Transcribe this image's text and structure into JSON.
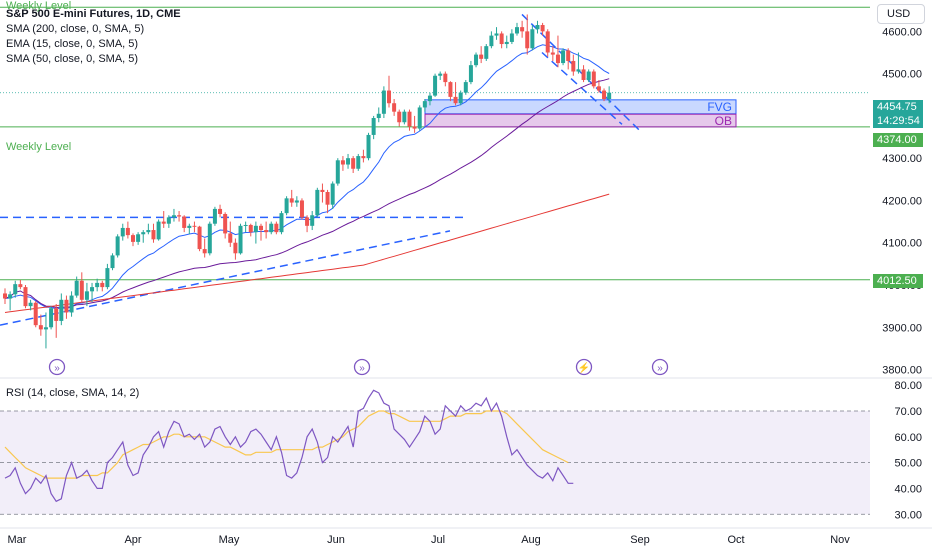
{
  "toolbar": {
    "currency": "USD"
  },
  "legend": {
    "title": "S&P 500 E-mini Futures, 1D, CME",
    "lines": [
      "SMA (200, close, 0, SMA, 5)",
      "EMA (15, close, 0, SMA, 5)",
      "SMA (50, close, 0, SMA, 5)"
    ]
  },
  "rsi_legend": "RSI (14, close, SMA, 14, 2)",
  "annotations": {
    "weekly_level_top": "Weekly Level",
    "weekly_level": "Weekly Level",
    "fvg": "FVG",
    "ob": "OB"
  },
  "price_tags": {
    "last_price": "4454.75",
    "countdown": "14:29:54",
    "level_mid": "4374.00",
    "level_low": "4012.50"
  },
  "colors": {
    "up": "#26a69a",
    "down": "#ef5350",
    "sma200": "#e53935",
    "ema15": "#2962ff",
    "sma50": "#6a1b9a",
    "rsi": "#7e57c2",
    "rsi_ma": "#f9c74f",
    "level": "#4caf50",
    "fvg": "#2962ff",
    "ob": "#9c27b0"
  },
  "chart_data": [
    {
      "type": "candlestick",
      "title": "S&P 500 E-mini Futures, 1D, CME",
      "ylim": [
        3780,
        4660
      ],
      "y_ticks": [
        "4600.00",
        "4500.00",
        "4400.00",
        "4300.00",
        "4200.00",
        "4100.00",
        "4000.00",
        "3900.00",
        "3800.00"
      ],
      "x_ticks": [
        "Mar",
        "Apr",
        "May",
        "Jun",
        "Jul",
        "Aug",
        "Sep",
        "Oct",
        "Nov"
      ],
      "ohlc": [
        [
          "Mar-01",
          3980,
          3992,
          3955,
          3968
        ],
        [
          "Mar-02",
          3968,
          3985,
          3940,
          3978
        ],
        [
          "Mar-03",
          3978,
          4010,
          3970,
          4002
        ],
        [
          "Mar-06",
          4002,
          4012,
          3990,
          3995
        ],
        [
          "Mar-07",
          3995,
          4000,
          3945,
          3950
        ],
        [
          "Mar-08",
          3950,
          3965,
          3940,
          3958
        ],
        [
          "Mar-09",
          3958,
          3962,
          3900,
          3905
        ],
        [
          "Mar-10",
          3905,
          3930,
          3880,
          3895
        ],
        [
          "Mar-13",
          3895,
          3935,
          3850,
          3900
        ],
        [
          "Mar-14",
          3900,
          3950,
          3895,
          3945
        ],
        [
          "Mar-15",
          3945,
          3955,
          3875,
          3915
        ],
        [
          "Mar-16",
          3915,
          3980,
          3905,
          3965
        ],
        [
          "Mar-17",
          3965,
          3975,
          3920,
          3935
        ],
        [
          "Mar-20",
          3935,
          3985,
          3925,
          3975
        ],
        [
          "Mar-21",
          3975,
          4020,
          3970,
          4010
        ],
        [
          "Mar-22",
          4010,
          4030,
          3960,
          3965
        ],
        [
          "Mar-23",
          3965,
          4005,
          3950,
          3985
        ],
        [
          "Mar-24",
          3985,
          4005,
          3960,
          3995
        ],
        [
          "Mar-27",
          3995,
          4015,
          3985,
          4005
        ],
        [
          "Mar-28",
          4005,
          4010,
          3985,
          3995
        ],
        [
          "Mar-29",
          3995,
          4050,
          3990,
          4040
        ],
        [
          "Mar-30",
          4040,
          4075,
          4035,
          4070
        ],
        [
          "Mar-31",
          4070,
          4120,
          4065,
          4115
        ],
        [
          "Apr-03",
          4115,
          4145,
          4105,
          4135
        ],
        [
          "Apr-04",
          4135,
          4150,
          4110,
          4118
        ],
        [
          "Apr-05",
          4118,
          4122,
          4092,
          4102
        ],
        [
          "Apr-06",
          4102,
          4125,
          4095,
          4120
        ],
        [
          "Apr-10",
          4120,
          4130,
          4100,
          4125
        ],
        [
          "Apr-11",
          4125,
          4145,
          4120,
          4130
        ],
        [
          "Apr-12",
          4130,
          4145,
          4100,
          4108
        ],
        [
          "Apr-13",
          4108,
          4155,
          4105,
          4150
        ],
        [
          "Apr-14",
          4150,
          4175,
          4135,
          4145
        ],
        [
          "Apr-17",
          4145,
          4165,
          4135,
          4160
        ],
        [
          "Apr-18",
          4160,
          4180,
          4150,
          4165
        ],
        [
          "Apr-19",
          4165,
          4175,
          4150,
          4162
        ],
        [
          "Apr-20",
          4162,
          4165,
          4125,
          4135
        ],
        [
          "Apr-21",
          4135,
          4145,
          4120,
          4140
        ],
        [
          "Apr-24",
          4140,
          4150,
          4125,
          4138
        ],
        [
          "Apr-25",
          4138,
          4140,
          4080,
          4085
        ],
        [
          "Apr-26",
          4085,
          4110,
          4065,
          4075
        ],
        [
          "Apr-27",
          4075,
          4150,
          4070,
          4145
        ],
        [
          "Apr-28",
          4145,
          4185,
          4140,
          4180
        ],
        [
          "May-01",
          4180,
          4190,
          4160,
          4168
        ],
        [
          "May-02",
          4168,
          4172,
          4110,
          4122
        ],
        [
          "May-03",
          4122,
          4150,
          4090,
          4100
        ],
        [
          "May-04",
          4100,
          4110,
          4060,
          4075
        ],
        [
          "May-05",
          4075,
          4145,
          4072,
          4140
        ],
        [
          "May-08",
          4140,
          4150,
          4125,
          4142
        ],
        [
          "May-09",
          4142,
          4145,
          4115,
          4125
        ],
        [
          "May-10",
          4125,
          4150,
          4098,
          4140
        ],
        [
          "May-11",
          4140,
          4145,
          4105,
          4130
        ],
        [
          "May-12",
          4130,
          4150,
          4110,
          4125
        ],
        [
          "May-15",
          4125,
          4150,
          4120,
          4145
        ],
        [
          "May-16",
          4145,
          4150,
          4120,
          4125
        ],
        [
          "May-17",
          4125,
          4175,
          4120,
          4170
        ],
        [
          "May-18",
          4170,
          4210,
          4165,
          4205
        ],
        [
          "May-19",
          4205,
          4225,
          4185,
          4195
        ],
        [
          "May-22",
          4195,
          4210,
          4185,
          4200
        ],
        [
          "May-23",
          4200,
          4205,
          4155,
          4160
        ],
        [
          "May-24",
          4160,
          4165,
          4125,
          4140
        ],
        [
          "May-25",
          4140,
          4175,
          4130,
          4165
        ],
        [
          "May-26",
          4165,
          4230,
          4160,
          4225
        ],
        [
          "May-30",
          4225,
          4240,
          4195,
          4220
        ],
        [
          "May-31",
          4220,
          4225,
          4170,
          4190
        ],
        [
          "Jun-01",
          4190,
          4245,
          4180,
          4240
        ],
        [
          "Jun-02",
          4240,
          4300,
          4235,
          4295
        ],
        [
          "Jun-05",
          4295,
          4305,
          4270,
          4285
        ],
        [
          "Jun-06",
          4285,
          4310,
          4275,
          4300
        ],
        [
          "Jun-07",
          4300,
          4305,
          4265,
          4275
        ],
        [
          "Jun-08",
          4275,
          4310,
          4270,
          4305
        ],
        [
          "Jun-09",
          4305,
          4320,
          4290,
          4300
        ],
        [
          "Jun-12",
          4300,
          4360,
          4295,
          4355
        ],
        [
          "Jun-13",
          4355,
          4400,
          4345,
          4395
        ],
        [
          "Jun-14",
          4395,
          4420,
          4385,
          4405
        ],
        [
          "Jun-15",
          4405,
          4470,
          4395,
          4460
        ],
        [
          "Jun-16",
          4460,
          4495,
          4420,
          4430
        ],
        [
          "Jun-20",
          4430,
          4440,
          4400,
          4410
        ],
        [
          "Jun-21",
          4410,
          4415,
          4375,
          4385
        ],
        [
          "Jun-22",
          4385,
          4415,
          4380,
          4410
        ],
        [
          "Jun-23",
          4410,
          4415,
          4365,
          4375
        ],
        [
          "Jun-26",
          4375,
          4400,
          4360,
          4370
        ],
        [
          "Jun-27",
          4370,
          4425,
          4365,
          4420
        ],
        [
          "Jun-28",
          4420,
          4440,
          4410,
          4435
        ],
        [
          "Jun-29",
          4435,
          4455,
          4425,
          4448
        ],
        [
          "Jun-30",
          4448,
          4500,
          4445,
          4495
        ],
        [
          "Jul-03",
          4495,
          4505,
          4485,
          4500
        ],
        [
          "Jul-05",
          4500,
          4505,
          4470,
          4480
        ],
        [
          "Jul-06",
          4480,
          4482,
          4435,
          4445
        ],
        [
          "Jul-07",
          4445,
          4480,
          4425,
          4430
        ],
        [
          "Jul-10",
          4430,
          4460,
          4425,
          4455
        ],
        [
          "Jul-11",
          4455,
          4485,
          4450,
          4480
        ],
        [
          "Jul-12",
          4480,
          4530,
          4475,
          4520
        ],
        [
          "Jul-13",
          4520,
          4550,
          4515,
          4545
        ],
        [
          "Jul-14",
          4545,
          4565,
          4525,
          4535
        ],
        [
          "Jul-17",
          4535,
          4570,
          4530,
          4565
        ],
        [
          "Jul-18",
          4565,
          4600,
          4560,
          4590
        ],
        [
          "Jul-19",
          4590,
          4610,
          4580,
          4595
        ],
        [
          "Jul-20",
          4595,
          4600,
          4560,
          4570
        ],
        [
          "Jul-21",
          4570,
          4590,
          4560,
          4575
        ],
        [
          "Jul-24",
          4575,
          4605,
          4570,
          4595
        ],
        [
          "Jul-25",
          4595,
          4620,
          4590,
          4610
        ],
        [
          "Jul-26",
          4610,
          4625,
          4585,
          4600
        ],
        [
          "Jul-27",
          4600,
          4640,
          4545,
          4560
        ],
        [
          "Jul-28",
          4560,
          4615,
          4555,
          4605
        ],
        [
          "Jul-31",
          4605,
          4625,
          4595,
          4615
        ],
        [
          "Aug-01",
          4615,
          4620,
          4590,
          4600
        ],
        [
          "Aug-02",
          4600,
          4605,
          4540,
          4550
        ],
        [
          "Aug-03",
          4550,
          4565,
          4530,
          4545
        ],
        [
          "Aug-04",
          4545,
          4590,
          4515,
          4525
        ],
        [
          "Aug-07",
          4525,
          4560,
          4520,
          4555
        ],
        [
          "Aug-08",
          4555,
          4560,
          4510,
          4530
        ],
        [
          "Aug-09",
          4530,
          4545,
          4495,
          4505
        ],
        [
          "Aug-10",
          4505,
          4550,
          4500,
          4510
        ],
        [
          "Aug-11",
          4510,
          4520,
          4480,
          4485
        ],
        [
          "Aug-14",
          4485,
          4510,
          4480,
          4505
        ],
        [
          "Aug-15",
          4505,
          4510,
          4465,
          4470
        ],
        [
          "Aug-16",
          4470,
          4485,
          4455,
          4460
        ],
        [
          "Aug-17",
          4460,
          4465,
          4435,
          4440
        ],
        [
          "Aug-18",
          4440,
          4470,
          4430,
          4455
        ]
      ]
    },
    {
      "type": "line",
      "title": "RSI (14, close, SMA, 14, 2)",
      "ylim": [
        27,
        82
      ],
      "y_ticks": [
        "80.00",
        "70.00",
        "60.00",
        "50.00",
        "40.00",
        "30.00"
      ],
      "band": [
        30,
        70
      ],
      "series": [
        {
          "name": "RSI",
          "values": [
            44,
            45,
            48,
            42,
            38,
            40,
            44,
            42,
            45,
            38,
            35,
            36,
            45,
            50,
            44,
            45,
            47,
            43,
            40,
            40,
            50,
            52,
            55,
            58,
            49,
            45,
            46,
            53,
            56,
            60,
            62,
            56,
            62,
            66,
            65,
            60,
            61,
            59,
            61,
            56,
            58,
            63,
            64,
            60,
            57,
            60,
            56,
            58,
            62,
            63,
            61,
            58,
            55,
            60,
            54,
            45,
            44,
            46,
            52,
            60,
            63,
            58,
            50,
            52,
            60,
            58,
            61,
            64,
            56,
            70,
            71,
            75,
            78,
            77,
            73,
            72,
            63,
            61,
            59,
            56,
            59,
            62,
            68,
            66,
            61,
            63,
            72,
            70,
            68,
            72,
            70,
            71,
            73,
            72,
            75,
            70,
            73,
            68,
            60,
            53,
            55,
            52,
            49,
            47,
            45,
            44,
            46,
            43,
            48,
            45,
            42,
            42
          ]
        },
        {
          "name": "RSI-based MA",
          "values": [
            56,
            54,
            52,
            50,
            48,
            47,
            46,
            45,
            44,
            44,
            44,
            44,
            44,
            44,
            44,
            45,
            45,
            45,
            45,
            46,
            46,
            48,
            50,
            53,
            54,
            55,
            56,
            57,
            57,
            58,
            59,
            60,
            60,
            61,
            61,
            60,
            60,
            60,
            60,
            60,
            59,
            58,
            57,
            56,
            56,
            55,
            54,
            53,
            53,
            54,
            54,
            54,
            54,
            55,
            55,
            55,
            55,
            55,
            55,
            55,
            55,
            56,
            56,
            57,
            58,
            59,
            60,
            62,
            63,
            64,
            66,
            68,
            69,
            70,
            70,
            69,
            69,
            68,
            67,
            66,
            66,
            66,
            66,
            66,
            66,
            66,
            67,
            68,
            68,
            68,
            69,
            69,
            69,
            69,
            70,
            70,
            70,
            70,
            69,
            67,
            65,
            63,
            61,
            59,
            57,
            55,
            54,
            53,
            52,
            51,
            50
          ]
        }
      ]
    }
  ]
}
